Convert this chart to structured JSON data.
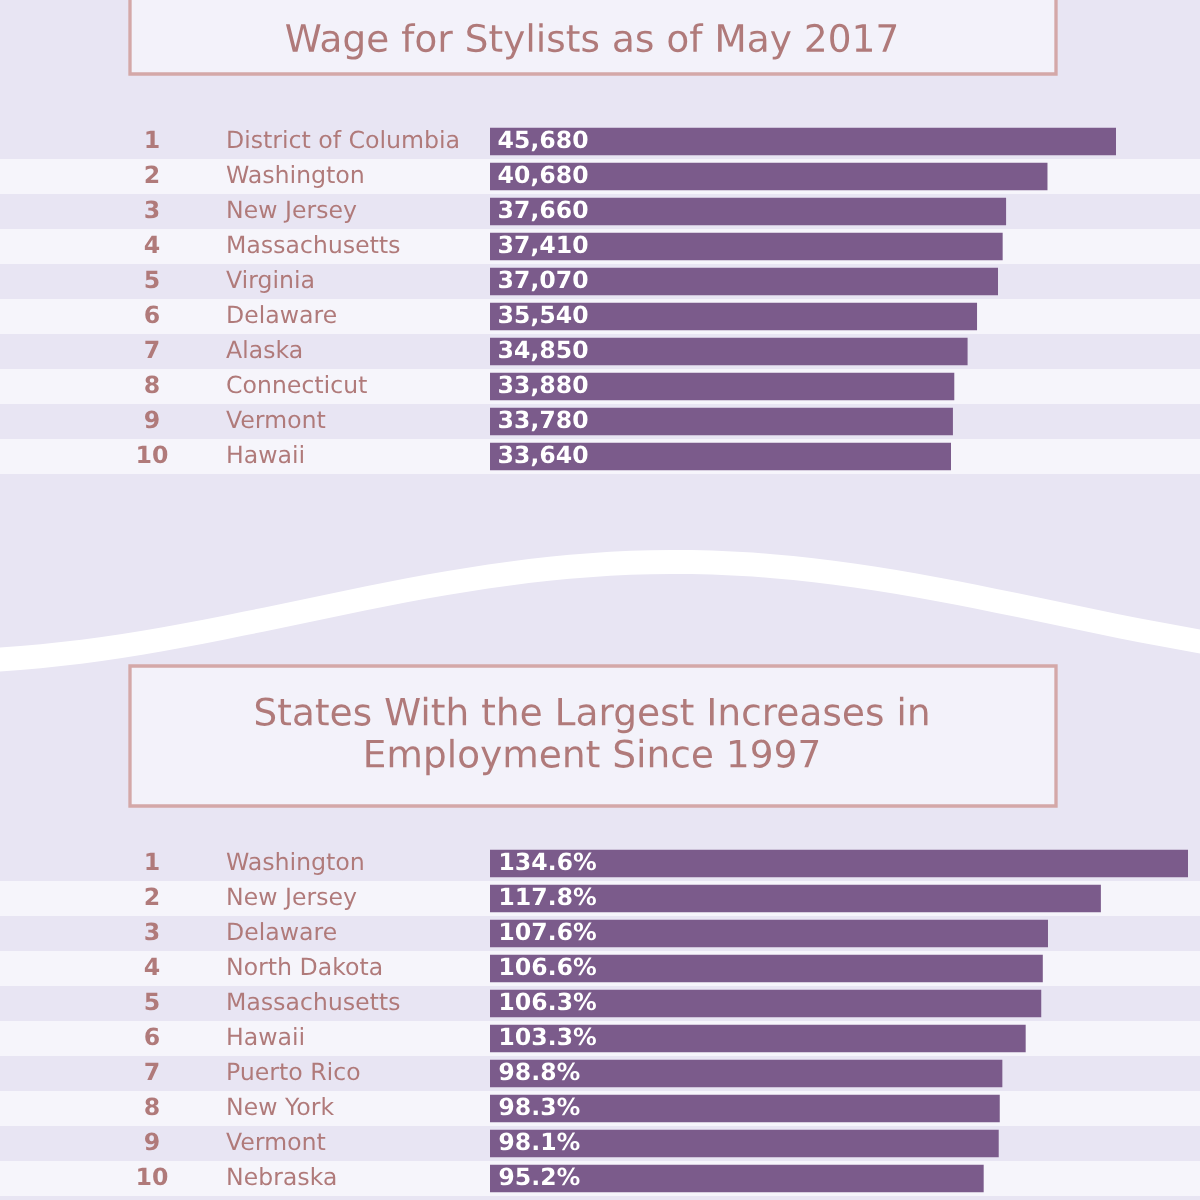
{
  "chart_data": [
    {
      "type": "bar",
      "orientation": "horizontal",
      "title": "Wage for Stylists as of May 2017",
      "categories": [
        "District of Columbia",
        "Washington",
        "New Jersey",
        "Massachusetts",
        "Virginia",
        "Delaware",
        "Alaska",
        "Connecticut",
        "Vermont",
        "Hawaii"
      ],
      "y2_categories": [
        "1",
        "2",
        "3",
        "4",
        "5",
        "6",
        "7",
        "8",
        "9",
        "10"
      ],
      "values": [
        45680,
        40680,
        37660,
        37410,
        37070,
        35540,
        34850,
        33880,
        33780,
        33640
      ],
      "value_labels": [
        "45,680",
        "40,680",
        "37,660",
        "37,410",
        "37,070",
        "35,540",
        "34,850",
        "33,880",
        "33,780",
        "33,640"
      ],
      "color": "#7b5b8b"
    },
    {
      "type": "bar",
      "orientation": "horizontal",
      "title": "States With the Largest Increases in Employment Since 1997",
      "categories": [
        "Washington",
        "New Jersey",
        "Delaware",
        "North Dakota",
        "Massachusetts",
        "Hawaii",
        "Puerto Rico",
        "New York",
        "Vermont",
        "Nebraska"
      ],
      "y2_categories": [
        "1",
        "2",
        "3",
        "4",
        "5",
        "6",
        "7",
        "8",
        "9",
        "10"
      ],
      "values": [
        134.6,
        117.8,
        107.6,
        106.6,
        106.3,
        103.3,
        98.8,
        98.3,
        98.1,
        95.2
      ],
      "value_labels": [
        "134.6%",
        "117.8%",
        "107.6%",
        "106.6%",
        "106.3%",
        "103.3%",
        "98.8%",
        "98.3%",
        "98.1%",
        "95.2%"
      ],
      "color": "#7b5b8b"
    }
  ]
}
